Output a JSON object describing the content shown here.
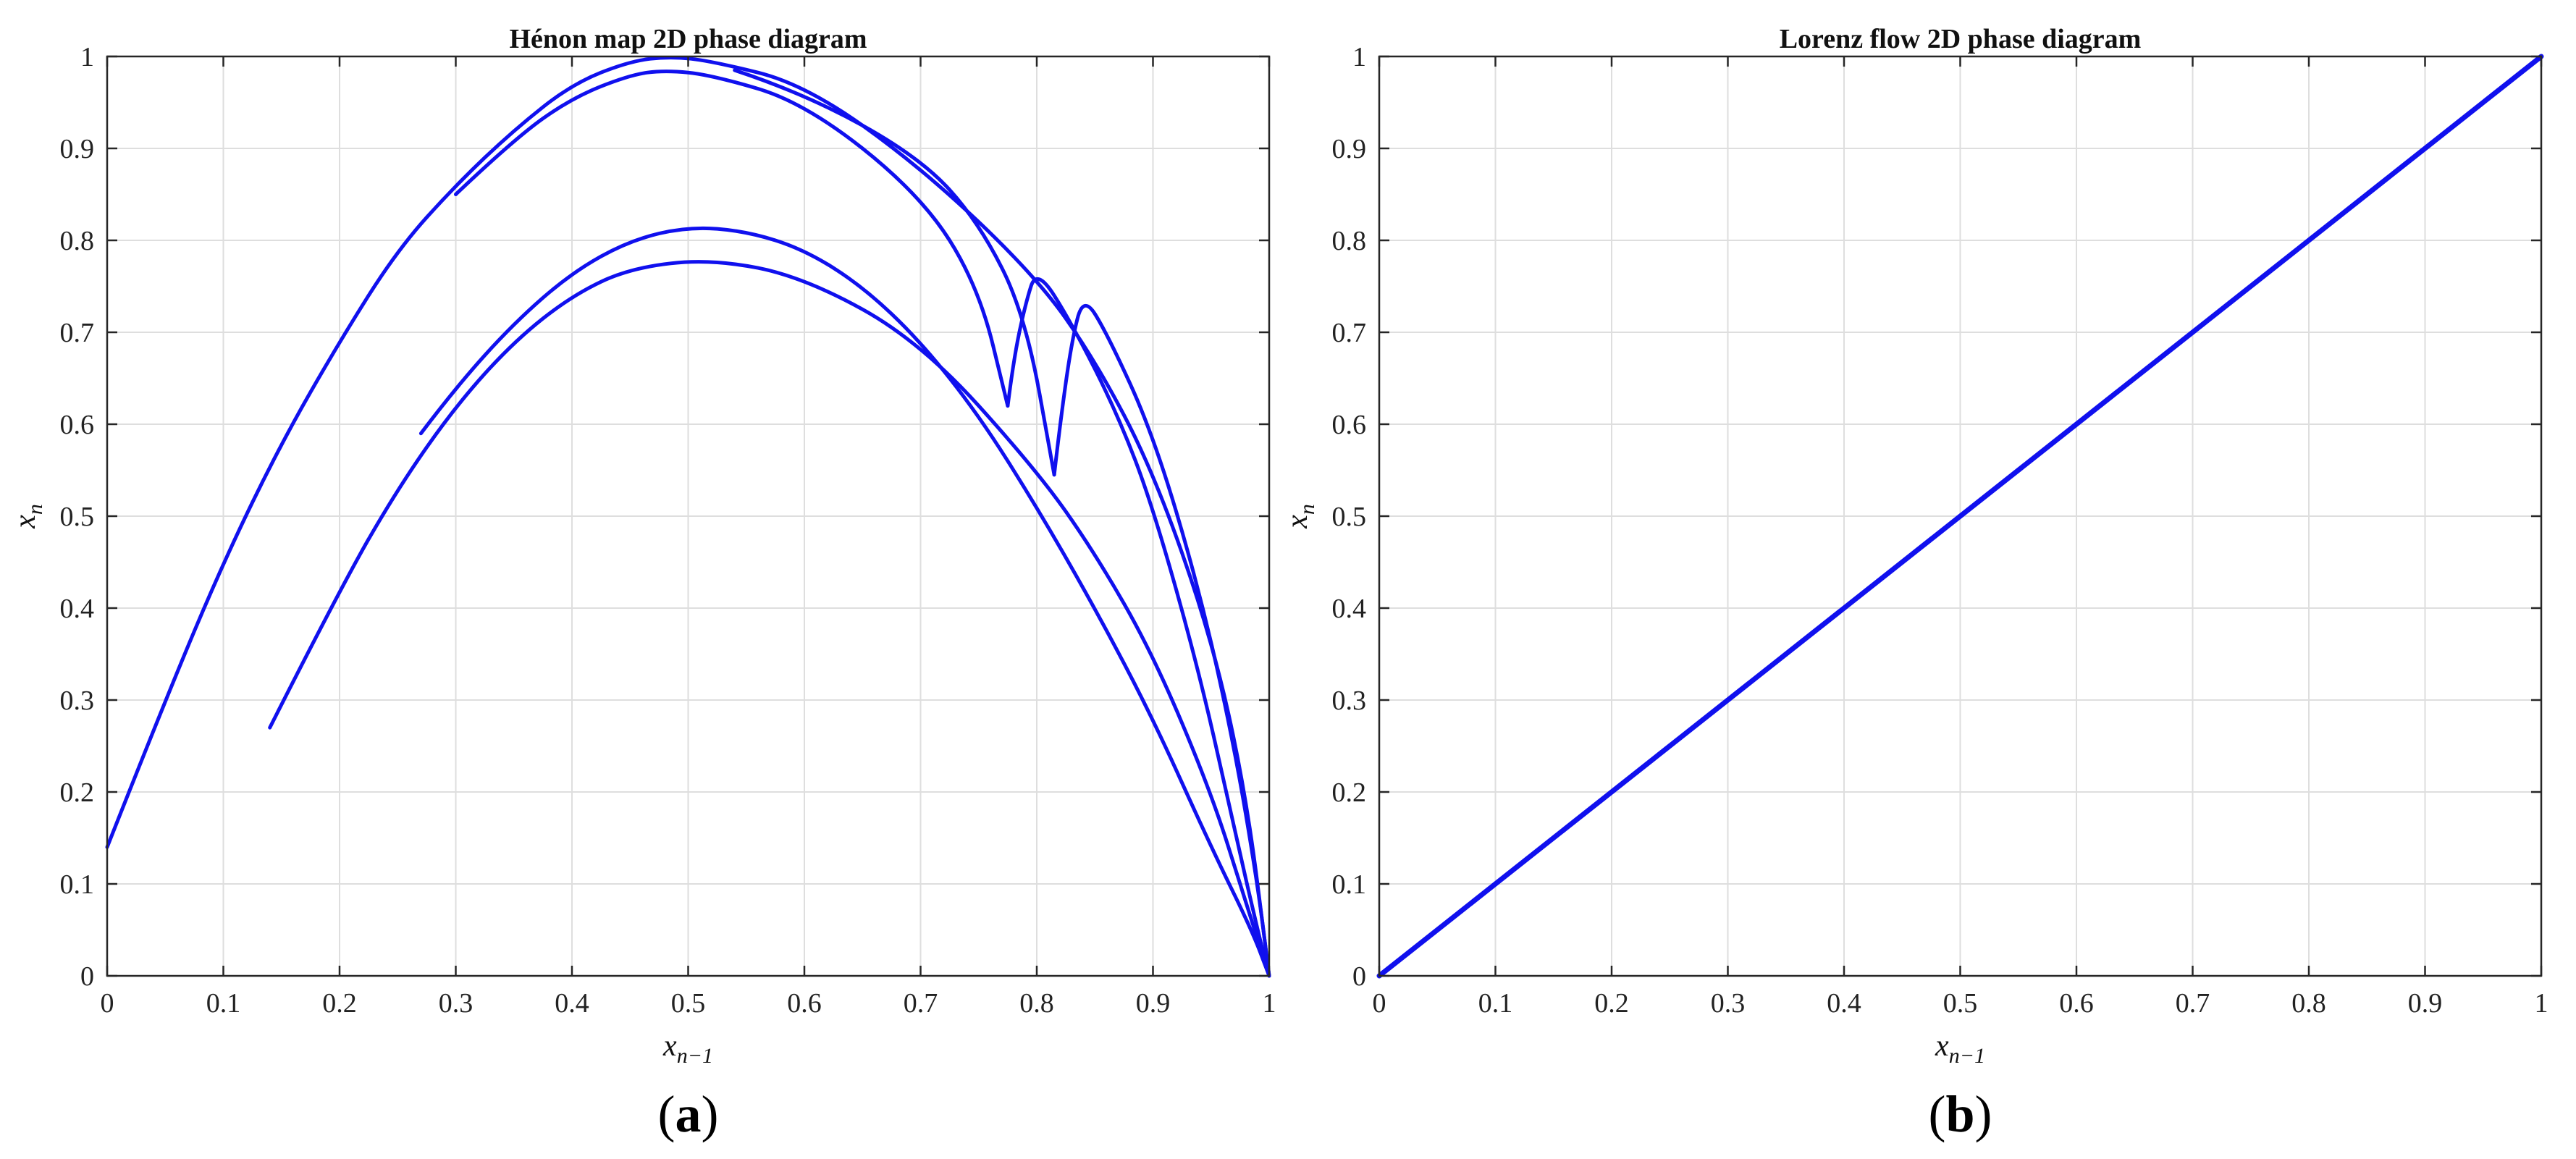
{
  "chart_data": [
    {
      "type": "scatter",
      "title": "Hénon map 2D phase diagram",
      "xlabel": "x_{n−1}",
      "ylabel": "x_n",
      "xlim": [
        0,
        1
      ],
      "ylim": [
        0,
        1
      ],
      "x_ticks": [
        "0",
        "0.1",
        "0.2",
        "0.3",
        "0.4",
        "0.5",
        "0.6",
        "0.7",
        "0.8",
        "0.9",
        "1"
      ],
      "y_ticks": [
        "0",
        "0.1",
        "0.2",
        "0.3",
        "0.4",
        "0.5",
        "0.6",
        "0.7",
        "0.8",
        "0.9",
        "1"
      ],
      "grid": true,
      "panel_label": "a",
      "color": "#1010ee",
      "series": [
        {
          "values": [
            [
              0.0,
              0.14
            ],
            [
              0.05,
              0.3
            ],
            [
              0.1,
              0.45
            ],
            [
              0.15,
              0.58
            ],
            [
              0.2,
              0.69
            ],
            [
              0.25,
              0.79
            ],
            [
              0.3,
              0.86
            ],
            [
              0.35,
              0.92
            ],
            [
              0.4,
              0.97
            ],
            [
              0.45,
              0.995
            ],
            [
              0.485,
              1.0
            ],
            [
              0.52,
              0.995
            ],
            [
              0.6,
              0.97
            ],
            [
              0.7,
              0.88
            ],
            [
              0.8,
              0.76
            ],
            [
              0.85,
              0.67
            ],
            [
              0.9,
              0.55
            ],
            [
              0.95,
              0.37
            ],
            [
              0.98,
              0.2
            ],
            [
              1.0,
              0.0
            ]
          ]
        },
        {
          "values": [
            [
              0.3,
              0.85
            ],
            [
              0.35,
              0.91
            ],
            [
              0.4,
              0.955
            ],
            [
              0.45,
              0.98
            ],
            [
              0.48,
              0.985
            ],
            [
              0.52,
              0.98
            ],
            [
              0.6,
              0.95
            ],
            [
              0.7,
              0.85
            ],
            [
              0.75,
              0.75
            ],
            [
              0.775,
              0.62
            ]
          ]
        },
        {
          "values": [
            [
              0.775,
              0.62
            ],
            [
              0.78,
              0.67
            ],
            [
              0.79,
              0.73
            ],
            [
              0.8,
              0.77
            ],
            [
              0.83,
              0.71
            ],
            [
              0.87,
              0.61
            ],
            [
              0.9,
              0.51
            ],
            [
              0.94,
              0.33
            ],
            [
              0.97,
              0.16
            ],
            [
              0.99,
              0.05
            ],
            [
              1.0,
              0.0
            ]
          ]
        },
        {
          "values": [
            [
              0.54,
              0.985
            ],
            [
              0.6,
              0.96
            ],
            [
              0.7,
              0.89
            ],
            [
              0.75,
              0.82
            ],
            [
              0.79,
              0.72
            ],
            [
              0.815,
              0.545
            ]
          ]
        },
        {
          "values": [
            [
              0.815,
              0.545
            ],
            [
              0.82,
              0.6
            ],
            [
              0.83,
              0.69
            ],
            [
              0.84,
              0.74
            ],
            [
              0.86,
              0.7
            ],
            [
              0.9,
              0.59
            ],
            [
              0.94,
              0.42
            ],
            [
              0.97,
              0.25
            ],
            [
              0.99,
              0.1
            ],
            [
              1.0,
              0.0
            ]
          ]
        },
        {
          "values": [
            [
              0.27,
              0.59
            ],
            [
              0.3,
              0.64
            ],
            [
              0.35,
              0.71
            ],
            [
              0.4,
              0.765
            ],
            [
              0.45,
              0.8
            ],
            [
              0.5,
              0.815
            ],
            [
              0.55,
              0.81
            ],
            [
              0.6,
              0.79
            ],
            [
              0.65,
              0.75
            ],
            [
              0.7,
              0.69
            ],
            [
              0.75,
              0.61
            ],
            [
              0.8,
              0.51
            ],
            [
              0.85,
              0.4
            ],
            [
              0.9,
              0.28
            ],
            [
              0.95,
              0.14
            ],
            [
              0.985,
              0.05
            ],
            [
              1.0,
              0.0
            ]
          ]
        },
        {
          "values": [
            [
              0.14,
              0.27
            ],
            [
              0.2,
              0.42
            ],
            [
              0.25,
              0.53
            ],
            [
              0.3,
              0.62
            ],
            [
              0.35,
              0.69
            ],
            [
              0.4,
              0.74
            ],
            [
              0.45,
              0.77
            ],
            [
              0.52,
              0.78
            ],
            [
              0.6,
              0.76
            ],
            [
              0.7,
              0.69
            ],
            [
              0.8,
              0.55
            ],
            [
              0.85,
              0.46
            ],
            [
              0.9,
              0.35
            ],
            [
              0.95,
              0.2
            ],
            [
              0.98,
              0.08
            ],
            [
              1.0,
              0.0
            ]
          ]
        }
      ]
    },
    {
      "type": "scatter",
      "title": "Lorenz flow 2D phase diagram",
      "xlabel": "x_{n−1}",
      "ylabel": "x_n",
      "xlim": [
        0,
        1
      ],
      "ylim": [
        0,
        1
      ],
      "x_ticks": [
        "0",
        "0.1",
        "0.2",
        "0.3",
        "0.4",
        "0.5",
        "0.6",
        "0.7",
        "0.8",
        "0.9",
        "1"
      ],
      "y_ticks": [
        "0",
        "0.1",
        "0.2",
        "0.3",
        "0.4",
        "0.5",
        "0.6",
        "0.7",
        "0.8",
        "0.9",
        "1"
      ],
      "grid": true,
      "panel_label": "b",
      "color": "#1010ee",
      "series": [
        {
          "values": [
            [
              0.0,
              0.0
            ],
            [
              0.2,
              0.2
            ],
            [
              0.4,
              0.4
            ],
            [
              0.6,
              0.6
            ],
            [
              0.8,
              0.8
            ],
            [
              1.0,
              1.0
            ]
          ]
        }
      ]
    }
  ]
}
